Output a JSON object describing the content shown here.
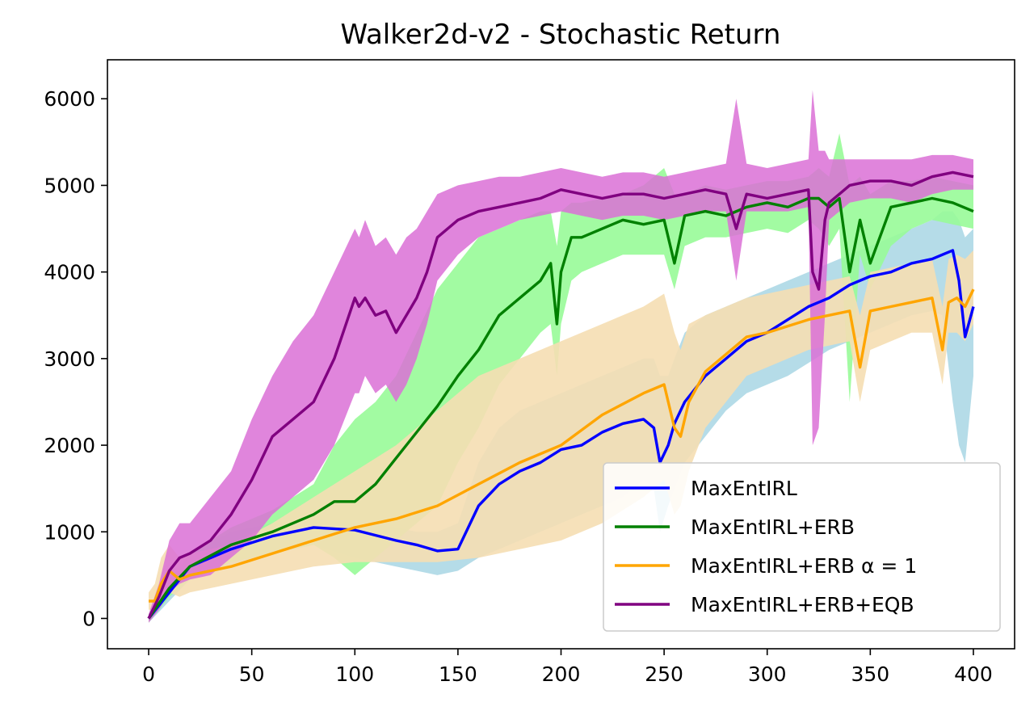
{
  "chart_data": {
    "type": "line",
    "title": "Walker2d-v2 - Stochastic Return",
    "xlabel": "",
    "ylabel": "",
    "xlim": [
      -20,
      420
    ],
    "ylim": [
      -350,
      6450
    ],
    "xticks": [
      0,
      50,
      100,
      150,
      200,
      250,
      300,
      350,
      400
    ],
    "yticks": [
      0,
      1000,
      2000,
      3000,
      4000,
      5000,
      6000
    ],
    "grid": false,
    "legend_position": "lower-right",
    "series": [
      {
        "name": "MaxEntIRL",
        "color": "#0000ff",
        "band_color": "#add8e6",
        "x": [
          0,
          10,
          20,
          40,
          60,
          80,
          100,
          120,
          130,
          140,
          150,
          160,
          170,
          180,
          190,
          200,
          210,
          220,
          230,
          240,
          245,
          248,
          252,
          255,
          260,
          270,
          280,
          290,
          300,
          310,
          320,
          330,
          340,
          350,
          360,
          370,
          380,
          385,
          390,
          393,
          396,
          400
        ],
        "y": [
          0,
          300,
          600,
          800,
          950,
          1050,
          1020,
          900,
          850,
          780,
          800,
          1300,
          1550,
          1700,
          1800,
          1950,
          2000,
          2150,
          2250,
          2300,
          2200,
          1800,
          2000,
          2250,
          2500,
          2800,
          3000,
          3200,
          3300,
          3450,
          3600,
          3700,
          3850,
          3950,
          4000,
          4100,
          4150,
          4200,
          4250,
          3900,
          3250,
          3600
        ],
        "lower": [
          -50,
          200,
          450,
          600,
          750,
          850,
          700,
          600,
          550,
          500,
          550,
          700,
          800,
          900,
          1000,
          1100,
          1200,
          1300,
          1400,
          1600,
          1500,
          1000,
          1300,
          1500,
          1800,
          2100,
          2400,
          2600,
          2700,
          2800,
          2950,
          3100,
          3200,
          3300,
          3400,
          3500,
          3550,
          3500,
          2500,
          2000,
          1800,
          2800
        ],
        "upper": [
          50,
          400,
          750,
          1000,
          1100,
          1150,
          1100,
          1050,
          1000,
          1000,
          1100,
          1800,
          2200,
          2400,
          2500,
          2600,
          2700,
          2800,
          2900,
          3000,
          3000,
          2800,
          2800,
          3000,
          3300,
          3500,
          3600,
          3700,
          3800,
          3900,
          4000,
          4100,
          4200,
          4300,
          4400,
          4500,
          4600,
          4700,
          4700,
          4600,
          4400,
          4500
        ]
      },
      {
        "name": "MaxEntIRL+ERB",
        "color": "#008000",
        "band_color": "#98fb98",
        "x": [
          0,
          10,
          20,
          40,
          60,
          80,
          90,
          100,
          110,
          120,
          130,
          140,
          150,
          160,
          170,
          180,
          190,
          195,
          198,
          200,
          205,
          210,
          220,
          230,
          240,
          250,
          255,
          260,
          270,
          280,
          290,
          300,
          310,
          320,
          325,
          330,
          335,
          340,
          345,
          350,
          360,
          370,
          380,
          390,
          400
        ],
        "y": [
          0,
          350,
          600,
          850,
          1000,
          1200,
          1350,
          1350,
          1550,
          1850,
          2150,
          2450,
          2800,
          3100,
          3500,
          3700,
          3900,
          4100,
          3400,
          4000,
          4400,
          4400,
          4500,
          4600,
          4550,
          4600,
          4100,
          4650,
          4700,
          4650,
          4750,
          4800,
          4750,
          4850,
          4850,
          4750,
          4850,
          4000,
          4600,
          4100,
          4750,
          4800,
          4850,
          4800,
          4700
        ],
        "lower": [
          -50,
          250,
          450,
          650,
          750,
          850,
          700,
          500,
          700,
          900,
          1100,
          1300,
          1800,
          2200,
          2700,
          3000,
          3300,
          3400,
          2800,
          3400,
          3900,
          4000,
          4100,
          4200,
          4200,
          4200,
          3800,
          4300,
          4400,
          4400,
          4450,
          4500,
          4450,
          4600,
          4500,
          4300,
          4500,
          2500,
          4200,
          3800,
          4300,
          4500,
          4600,
          4550,
          4500
        ],
        "upper": [
          50,
          450,
          750,
          1050,
          1250,
          1550,
          2000,
          2300,
          2500,
          2800,
          3300,
          3800,
          4100,
          4400,
          4500,
          4600,
          4700,
          4700,
          4300,
          4700,
          4800,
          4800,
          4850,
          4900,
          5000,
          5200,
          4900,
          4900,
          5000,
          4950,
          5000,
          5050,
          5050,
          5100,
          5200,
          5100,
          5600,
          5000,
          5100,
          4900,
          5050,
          5050,
          5100,
          5050,
          5000
        ]
      },
      {
        "name": "MaxEntIRL+ERB α = 1",
        "color": "#ffa500",
        "band_color": "#f5deb3",
        "x": [
          0,
          3,
          6,
          10,
          15,
          20,
          40,
          60,
          80,
          100,
          120,
          140,
          160,
          180,
          200,
          220,
          240,
          250,
          255,
          258,
          262,
          270,
          280,
          290,
          300,
          320,
          340,
          345,
          350,
          360,
          370,
          380,
          385,
          388,
          392,
          396,
          400
        ],
        "y": [
          200,
          200,
          400,
          550,
          450,
          500,
          600,
          750,
          900,
          1050,
          1150,
          1300,
          1550,
          1800,
          2000,
          2350,
          2600,
          2700,
          2200,
          2100,
          2500,
          2850,
          3050,
          3250,
          3300,
          3450,
          3550,
          2900,
          3550,
          3600,
          3650,
          3700,
          3100,
          3650,
          3700,
          3600,
          3800
        ],
        "lower": [
          100,
          100,
          200,
          300,
          250,
          300,
          400,
          500,
          600,
          650,
          650,
          650,
          700,
          800,
          900,
          1100,
          1400,
          1600,
          1200,
          1300,
          1700,
          2200,
          2500,
          2800,
          2900,
          3100,
          3200,
          2500,
          3100,
          3200,
          3300,
          3300,
          2700,
          3300,
          3300,
          3200,
          3400
        ],
        "upper": [
          300,
          400,
          700,
          850,
          700,
          750,
          850,
          1100,
          1400,
          1700,
          2000,
          2400,
          2800,
          3000,
          3200,
          3400,
          3600,
          3750,
          3300,
          3100,
          3400,
          3500,
          3600,
          3700,
          3750,
          3850,
          3950,
          3500,
          4000,
          4050,
          4100,
          4150,
          3600,
          4150,
          4200,
          4150,
          4250
        ]
      },
      {
        "name": "MaxEntIRL+ERB+EQB",
        "color": "#800080",
        "band_color": "#da70d6",
        "x": [
          0,
          5,
          10,
          15,
          20,
          30,
          40,
          50,
          60,
          70,
          80,
          90,
          100,
          102,
          105,
          110,
          115,
          120,
          125,
          130,
          135,
          140,
          150,
          160,
          170,
          180,
          190,
          200,
          210,
          220,
          230,
          240,
          250,
          260,
          270,
          280,
          285,
          290,
          300,
          310,
          320,
          322,
          325,
          328,
          330,
          335,
          340,
          350,
          360,
          370,
          380,
          390,
          400
        ],
        "y": [
          0,
          250,
          550,
          700,
          750,
          900,
          1200,
          1600,
          2100,
          2300,
          2500,
          3000,
          3700,
          3600,
          3700,
          3500,
          3550,
          3300,
          3500,
          3700,
          4000,
          4400,
          4600,
          4700,
          4750,
          4800,
          4850,
          4950,
          4900,
          4850,
          4900,
          4900,
          4850,
          4900,
          4950,
          4900,
          4500,
          4900,
          4850,
          4900,
          4950,
          4000,
          3800,
          4600,
          4800,
          4900,
          5000,
          5050,
          5050,
          5000,
          5100,
          5150,
          5100
        ],
        "lower": [
          -50,
          100,
          300,
          400,
          450,
          500,
          700,
          900,
          1200,
          1400,
          1600,
          2000,
          2600,
          2600,
          2800,
          2600,
          2700,
          2500,
          2700,
          3000,
          3400,
          3900,
          4200,
          4400,
          4500,
          4600,
          4650,
          4700,
          4650,
          4600,
          4650,
          4650,
          4600,
          4650,
          4700,
          4700,
          3900,
          4700,
          4700,
          4700,
          4750,
          2000,
          2200,
          3500,
          4600,
          4700,
          4800,
          4850,
          4850,
          4800,
          4900,
          4950,
          4950
        ],
        "upper": [
          50,
          400,
          900,
          1100,
          1100,
          1400,
          1700,
          2300,
          2800,
          3200,
          3500,
          4000,
          4500,
          4400,
          4600,
          4300,
          4400,
          4200,
          4400,
          4500,
          4700,
          4900,
          5000,
          5050,
          5100,
          5100,
          5150,
          5200,
          5150,
          5100,
          5150,
          5150,
          5100,
          5150,
          5200,
          5250,
          6000,
          5250,
          5200,
          5250,
          5300,
          6100,
          5400,
          5400,
          5300,
          5300,
          5300,
          5300,
          5300,
          5300,
          5350,
          5350,
          5300
        ]
      }
    ]
  }
}
